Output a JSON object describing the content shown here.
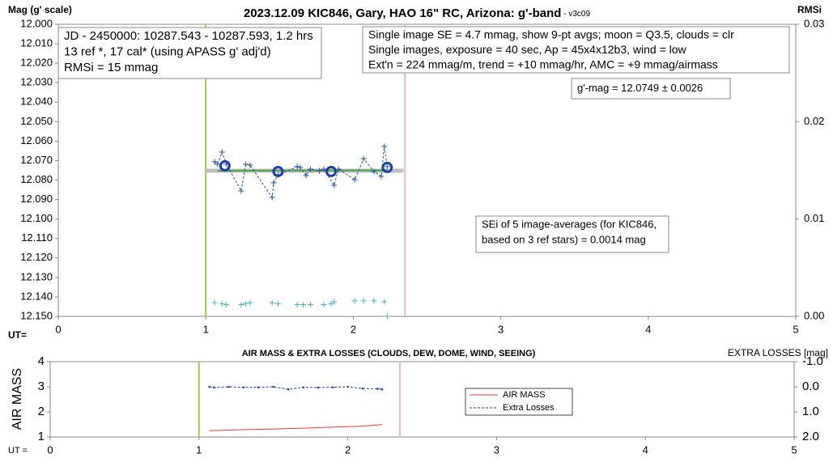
{
  "chart_data": [
    {
      "type": "line",
      "title": "2023.12.09 KIC846, Gary, HAO 16\" RC, Arizona: g'-band",
      "title_suffix": " - v3c09",
      "y_label": "Mag (g' scale)",
      "y2_label": "RMSi",
      "x_label": "UT=",
      "xlim": [
        0,
        5
      ],
      "xticks": [
        0,
        1,
        2,
        3,
        4,
        5
      ],
      "ylim": [
        12.15,
        12.0
      ],
      "yticks": [
        {
          "value": 12.0,
          "label": "12.000"
        },
        {
          "value": 12.01,
          "label": "12.010"
        },
        {
          "value": 12.02,
          "label": "12.020"
        },
        {
          "value": 12.03,
          "label": "12.030"
        },
        {
          "value": 12.04,
          "label": "12.040"
        },
        {
          "value": 12.05,
          "label": "12.050"
        },
        {
          "value": 12.06,
          "label": "12.060"
        },
        {
          "value": 12.07,
          "label": "12.070"
        },
        {
          "value": 12.08,
          "label": "12.080"
        },
        {
          "value": 12.09,
          "label": "12.090"
        },
        {
          "value": 12.1,
          "label": "12.100"
        },
        {
          "value": 12.11,
          "label": "12.110"
        },
        {
          "value": 12.12,
          "label": "12.120"
        },
        {
          "value": 12.13,
          "label": "12.130"
        },
        {
          "value": 12.14,
          "label": "12.140"
        },
        {
          "value": 12.15,
          "label": "12.150"
        }
      ],
      "y2lim": [
        0,
        0.03
      ],
      "y2ticks": [
        {
          "value": 0,
          "label": "0.00"
        },
        {
          "value": 0.01,
          "label": "0.01"
        },
        {
          "value": 0.02,
          "label": "0.02"
        },
        {
          "value": 0.03,
          "label": "0.03"
        }
      ],
      "vlines": [
        {
          "x": 1,
          "color": "#92d050"
        },
        {
          "x": 2.35,
          "color": "#f4b6c2"
        }
      ],
      "series": [
        {
          "color": "#bfbfbf",
          "line": "solid",
          "width": 5,
          "x": [
            1.0,
            2.34
          ],
          "values": [
            12.0752,
            12.0752
          ]
        },
        {
          "color": "#4aa84a",
          "line": "solid",
          "width": 2,
          "x": [
            1.08,
            2.23
          ],
          "values": [
            12.0752,
            12.075
          ]
        },
        {
          "color": "#2f5597",
          "line": "dashed",
          "width": 1,
          "marker": "plus",
          "x": [
            1.06,
            1.08,
            1.11,
            1.14,
            1.24,
            1.27,
            1.3,
            1.45,
            1.46,
            1.49,
            1.62,
            1.64,
            1.68,
            1.71,
            1.77,
            1.8,
            1.87,
            1.9,
            2.01,
            2.07,
            2.14,
            2.19,
            2.21,
            2.23
          ],
          "values": [
            12.0706,
            12.0719,
            12.0656,
            12.0719,
            12.0856,
            12.0719,
            12.0723,
            12.0889,
            12.0814,
            12.0773,
            12.0731,
            12.0735,
            12.0777,
            12.0744,
            12.0752,
            12.0744,
            12.0827,
            12.0744,
            12.0798,
            12.069,
            12.0756,
            12.0781,
            12.0627,
            12.0731
          ]
        },
        {
          "color": "#1f3fa8",
          "marker": "circle",
          "x": [
            1.13,
            1.49,
            1.85,
            2.23
          ],
          "values": [
            12.0727,
            12.0756,
            12.0756,
            12.0735
          ]
        },
        {
          "color": "#4bacc6",
          "marker": "plus",
          "axis": "y2",
          "x": [
            1.06,
            1.11,
            1.14,
            1.24,
            1.27,
            1.3,
            1.45,
            1.49,
            1.62,
            1.66,
            1.71,
            1.8,
            1.85,
            1.87,
            2.01,
            2.07,
            2.14,
            2.21,
            2.23
          ],
          "values": [
            0.0014,
            0.0013,
            0.0012,
            0.0012,
            0.0013,
            0.0014,
            0.0014,
            0.0013,
            0.0012,
            0.0012,
            0.0012,
            0.0012,
            0.0013,
            0.0015,
            0.0016,
            0.0016,
            0.0016,
            0.0015,
            0.0
          ]
        }
      ],
      "annotations": [
        {
          "lines": [
            "JD - 2450000: 10287.543 - 10287.593, 1.2 hrs",
            "13 ref *, 17 cal* (using APASS g' adj'd)",
            "RMSi = 15 mmag"
          ]
        },
        {
          "lines": [
            "Single image SE = 4.7 mmag, show  9-pt avgs; moon = Q3.5, clouds = clr",
            "Single images, exposure = 40 sec, Ap = 45x4x12b3, wind = low",
            "Ext'n = 224 mmag/m, trend = +10 mmag/hr, AMC = +9 mmag/airmass"
          ]
        },
        {
          "lines": [
            "g'-mag = 12.0749 ± 0.0026"
          ]
        },
        {
          "lines": [
            "SEi of 5 image-averages (for KIC846,",
            "based on 3 ref stars) = 0.0014 mag"
          ]
        }
      ]
    },
    {
      "type": "line",
      "title": "AIR MASS & EXTRA LOSSES (CLOUDS, DEW, DOME, WIND, SEEING)",
      "y_label": "AIR MASS",
      "y2_label": "EXTRA LOSSES [mag]",
      "x_label": "UT =",
      "xlim": [
        0,
        5
      ],
      "xticks": [
        0,
        1,
        2,
        3,
        4,
        5
      ],
      "ylim": [
        1,
        4
      ],
      "yticks": [
        1,
        2,
        3,
        4
      ],
      "y2lim": [
        2.0,
        -1.0
      ],
      "y2ticks": [
        {
          "value": -1,
          "label": "-1.0"
        },
        {
          "value": 0,
          "label": "0.0"
        },
        {
          "value": 1,
          "label": "1.0"
        },
        {
          "value": 2,
          "label": "2.0"
        }
      ],
      "vlines": [
        {
          "x": 1,
          "color": "#92d050"
        },
        {
          "x": 2.35,
          "color": "#f4b6c2"
        }
      ],
      "series": [
        {
          "name": "AIR MASS",
          "color": "#e03c31",
          "line": "solid",
          "width": 1,
          "x": [
            1.07,
            1.3,
            1.5,
            1.7,
            1.9,
            2.1,
            2.23
          ],
          "values": [
            1.25,
            1.29,
            1.32,
            1.35,
            1.39,
            1.43,
            1.49
          ]
        },
        {
          "name": "Extra Losses",
          "color": "#1f3fa8",
          "line": "dashed",
          "width": 1,
          "axis": "y2",
          "marker": "dot",
          "x": [
            1.07,
            1.1,
            1.2,
            1.3,
            1.4,
            1.5,
            1.6,
            1.7,
            1.8,
            1.9,
            2.0,
            2.1,
            2.2,
            2.23
          ],
          "values": [
            0.0,
            0.03,
            0.0,
            0.02,
            0.02,
            0.0,
            0.1,
            0.02,
            0.03,
            0.02,
            0.0,
            0.07,
            0.08,
            0.1
          ]
        }
      ]
    }
  ]
}
